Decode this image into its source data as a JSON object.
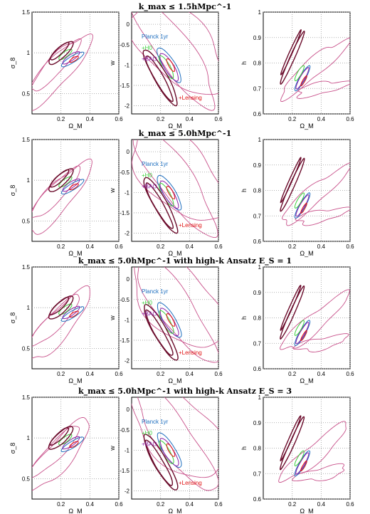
{
  "rows": [
    {
      "title": "k_max ≤ 1.5hMpc^-1"
    },
    {
      "title": "k_max ≤ 5.0hMpc^-1"
    },
    {
      "title": "k_max ≤ 5.0hMpc^-1 with high-k Ansatz E_S = 1"
    },
    {
      "title": "k_max ≤ 5.0hMpc^-1 with high-k Ansatz E_S = 3"
    }
  ],
  "legend": {
    "planck": "Planck 1yr",
    "h0": "+H0",
    "bao": "+BAO",
    "lensing": "+Lensing"
  },
  "colors": {
    "planck": "#1f6fbf",
    "h0": "#3ccf3c",
    "bao": "#8b1fa8",
    "lensing": "#e01010",
    "prior": "#c8508a",
    "dark": "#6a0a2a",
    "grid": "#999999"
  },
  "chart_data": [
    {
      "type": "contour",
      "panel": "omegam-sigma8",
      "xlabel": "Ω_M",
      "ylabel": "σ_8",
      "xlim": [
        0,
        0.6
      ],
      "ylim": [
        0.25,
        1.5
      ],
      "xticks": [
        "0.2",
        "0.4",
        "0.6"
      ],
      "yticks": [
        "0.5",
        "1",
        "1.5"
      ],
      "grid": true
    },
    {
      "type": "contour",
      "panel": "omegam-w",
      "xlabel": "Ω_M",
      "ylabel": "w",
      "xlim": [
        0,
        0.6
      ],
      "ylim": [
        -2.2,
        0.3
      ],
      "xticks": [
        "0.2",
        "0.4",
        "0.6"
      ],
      "yticks": [
        "-2",
        "-1.5",
        "-1",
        "-0.5",
        "0"
      ],
      "grid": true
    },
    {
      "type": "contour",
      "panel": "omegam-h",
      "xlabel": "Ω_M",
      "ylabel": "h",
      "xlim": [
        0,
        0.6
      ],
      "ylim": [
        0.6,
        1.0
      ],
      "xticks": [
        "0.2",
        "0.4",
        "0.6"
      ],
      "yticks": [
        "0.6",
        "0.7",
        "0.8",
        "0.9",
        "1"
      ],
      "grid": true
    }
  ]
}
